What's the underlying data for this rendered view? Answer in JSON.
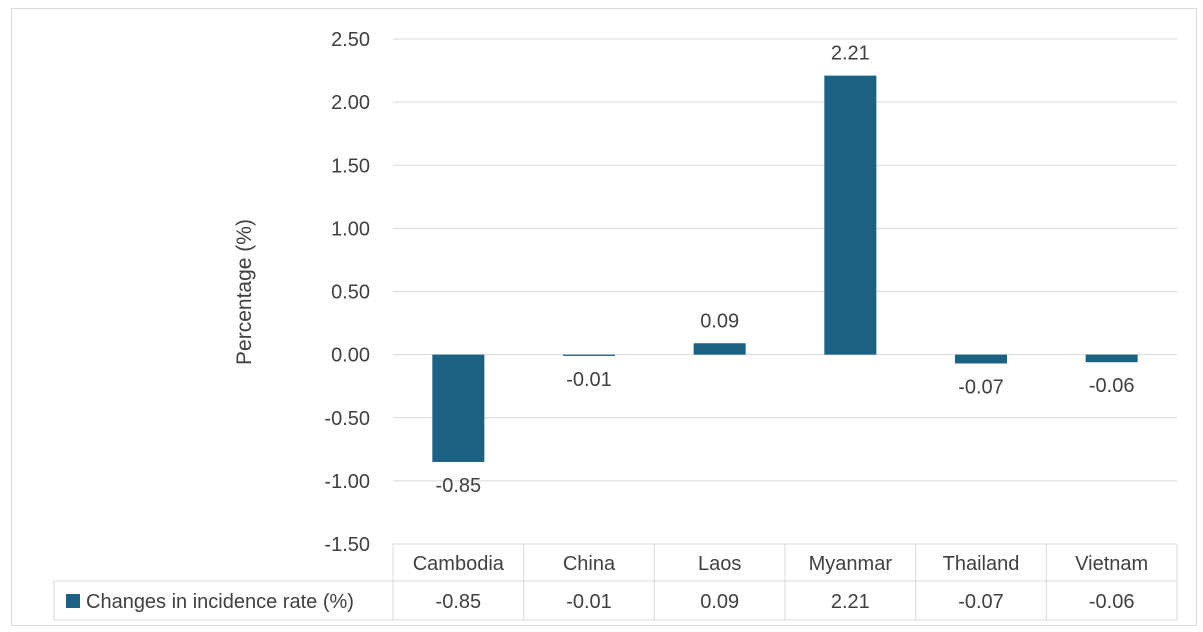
{
  "chart_data": {
    "type": "bar",
    "title": "",
    "xlabel": "",
    "ylabel": "Percentage (%)",
    "ylim": [
      -1.5,
      2.5
    ],
    "yticks": [
      "2.50",
      "2.00",
      "1.50",
      "1.00",
      "0.50",
      "0.00",
      "-0.50",
      "-1.00",
      "-1.50"
    ],
    "ytick_values": [
      2.5,
      2.0,
      1.5,
      1.0,
      0.5,
      0.0,
      -0.5,
      -1.0,
      -1.5
    ],
    "categories": [
      "Cambodia",
      "China",
      "Laos",
      "Myanmar",
      "Thailand",
      "Vietnam"
    ],
    "series": [
      {
        "name": "Changes in incidence rate (%)",
        "values": [
          -0.85,
          -0.01,
          0.09,
          2.21,
          -0.07,
          -0.06
        ],
        "labels": [
          "-0.85",
          "-0.01",
          "0.09",
          "2.21",
          "-0.07",
          "-0.06"
        ],
        "color": "#1a6183"
      }
    ],
    "grid": true,
    "legend": "data-table",
    "data_table": true
  },
  "colors": {
    "bar": "#1a6183",
    "grid": "#d9d9d9",
    "text": "#404040"
  }
}
